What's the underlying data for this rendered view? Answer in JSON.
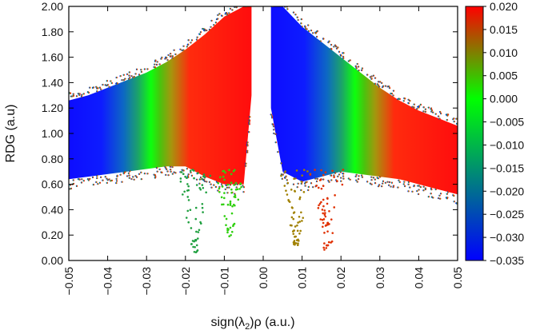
{
  "chart_data": {
    "type": "scatter",
    "title": "",
    "xlabel_prefix": "sign(λ",
    "xlabel_sub": "2",
    "xlabel_suffix": ")ρ (a.u.)",
    "ylabel": "RDG (a.u)",
    "xlim": [
      -0.05,
      0.05
    ],
    "ylim": [
      0.0,
      2.0
    ],
    "x_ticks": [
      "−0.05",
      "−0.04",
      "−0.03",
      "−0.02",
      "−0.01",
      "0.00",
      "0.01",
      "0.02",
      "0.03",
      "0.04",
      "0.05"
    ],
    "x_tick_values": [
      -0.05,
      -0.04,
      -0.03,
      -0.02,
      -0.01,
      0.0,
      0.01,
      0.02,
      0.03,
      0.04,
      0.05
    ],
    "y_ticks": [
      "0.00",
      "0.20",
      "0.40",
      "0.60",
      "0.80",
      "1.00",
      "1.20",
      "1.40",
      "1.60",
      "1.80",
      "2.00"
    ],
    "y_tick_values": [
      0.0,
      0.2,
      0.4,
      0.6,
      0.8,
      1.0,
      1.2,
      1.4,
      1.6,
      1.8,
      2.0
    ],
    "grid": false,
    "colorbar": {
      "range": [
        -0.035,
        0.02
      ],
      "ticks": [
        "0.020",
        "0.015",
        "0.010",
        "0.005",
        "0.000",
        "−0.005",
        "−0.010",
        "−0.015",
        "−0.020",
        "−0.025",
        "−0.030",
        "−0.035"
      ],
      "tick_values": [
        0.02,
        0.015,
        0.01,
        0.005,
        0.0,
        -0.005,
        -0.01,
        -0.015,
        -0.02,
        -0.025,
        -0.03,
        -0.035
      ],
      "colors": {
        "low": "#0000ff",
        "mid": "#00ff00",
        "high": "#ff0000"
      }
    },
    "envelope": {
      "left_wing": [
        {
          "x": -0.05,
          "y_min": 0.64,
          "y_max": 1.26
        },
        {
          "x": -0.045,
          "y_min": 0.66,
          "y_max": 1.3
        },
        {
          "x": -0.04,
          "y_min": 0.68,
          "y_max": 1.36
        },
        {
          "x": -0.035,
          "y_min": 0.7,
          "y_max": 1.42
        },
        {
          "x": -0.03,
          "y_min": 0.72,
          "y_max": 1.48
        },
        {
          "x": -0.025,
          "y_min": 0.74,
          "y_max": 1.56
        },
        {
          "x": -0.02,
          "y_min": 0.74,
          "y_max": 1.66
        },
        {
          "x": -0.015,
          "y_min": 0.66,
          "y_max": 1.78
        },
        {
          "x": -0.01,
          "y_min": 0.6,
          "y_max": 1.92
        },
        {
          "x": -0.005,
          "y_min": 0.6,
          "y_max": 2.0
        },
        {
          "x": -0.003,
          "y_min": 1.3,
          "y_max": 2.0
        }
      ],
      "right_wing": [
        {
          "x": 0.002,
          "y_min": 1.2,
          "y_max": 2.0
        },
        {
          "x": 0.005,
          "y_min": 0.7,
          "y_max": 2.0
        },
        {
          "x": 0.01,
          "y_min": 0.62,
          "y_max": 1.84
        },
        {
          "x": 0.015,
          "y_min": 0.66,
          "y_max": 1.72
        },
        {
          "x": 0.02,
          "y_min": 0.7,
          "y_max": 1.6
        },
        {
          "x": 0.025,
          "y_min": 0.68,
          "y_max": 1.48
        },
        {
          "x": 0.03,
          "y_min": 0.66,
          "y_max": 1.36
        },
        {
          "x": 0.035,
          "y_min": 0.64,
          "y_max": 1.26
        },
        {
          "x": 0.04,
          "y_min": 0.6,
          "y_max": 1.18
        },
        {
          "x": 0.045,
          "y_min": 0.56,
          "y_max": 1.12
        },
        {
          "x": 0.05,
          "y_min": 0.52,
          "y_max": 1.06
        }
      ],
      "spikes": [
        {
          "x": -0.0175,
          "y_min": 0.06
        },
        {
          "x": -0.0085,
          "y_min": 0.18
        },
        {
          "x": 0.0085,
          "y_min": 0.12
        },
        {
          "x": 0.0165,
          "y_min": 0.04
        }
      ]
    }
  }
}
